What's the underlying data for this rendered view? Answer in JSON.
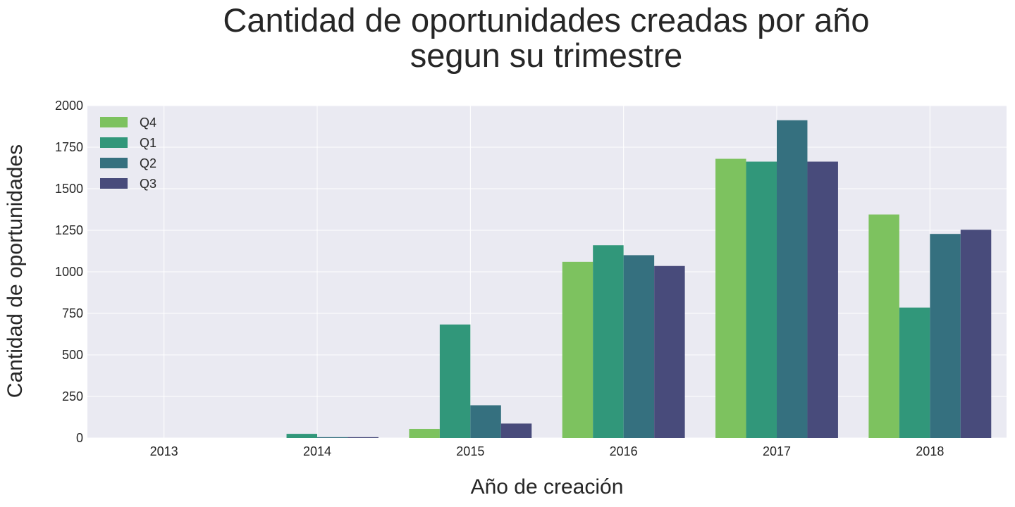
{
  "chart_data": {
    "type": "bar",
    "title": [
      "Cantidad de oportunidades creadas por año",
      "segun su trimestre"
    ],
    "xlabel": "Año de creación",
    "ylabel": "Cantidad de oportunidades",
    "categories": [
      "2013",
      "2014",
      "2015",
      "2016",
      "2017",
      "2018"
    ],
    "ylim": [
      0,
      2000
    ],
    "yticks": [
      0,
      250,
      500,
      750,
      1000,
      1250,
      1500,
      1750,
      2000
    ],
    "grid": true,
    "legend_placement": "top-left",
    "series": [
      {
        "name": "Q4",
        "color": "#7dc25f",
        "values": [
          0,
          0,
          55,
          1060,
          1680,
          1345
        ]
      },
      {
        "name": "Q1",
        "color": "#31977a",
        "values": [
          0,
          25,
          683,
          1160,
          1663,
          785
        ]
      },
      {
        "name": "Q2",
        "color": "#35707f",
        "values": [
          0,
          5,
          197,
          1100,
          1912,
          1228
        ]
      },
      {
        "name": "Q3",
        "color": "#484b7b",
        "values": [
          0,
          5,
          87,
          1035,
          1663,
          1253
        ]
      }
    ],
    "colors": {
      "plot_background": "#eaeaf2",
      "grid": "#ffffff"
    }
  }
}
